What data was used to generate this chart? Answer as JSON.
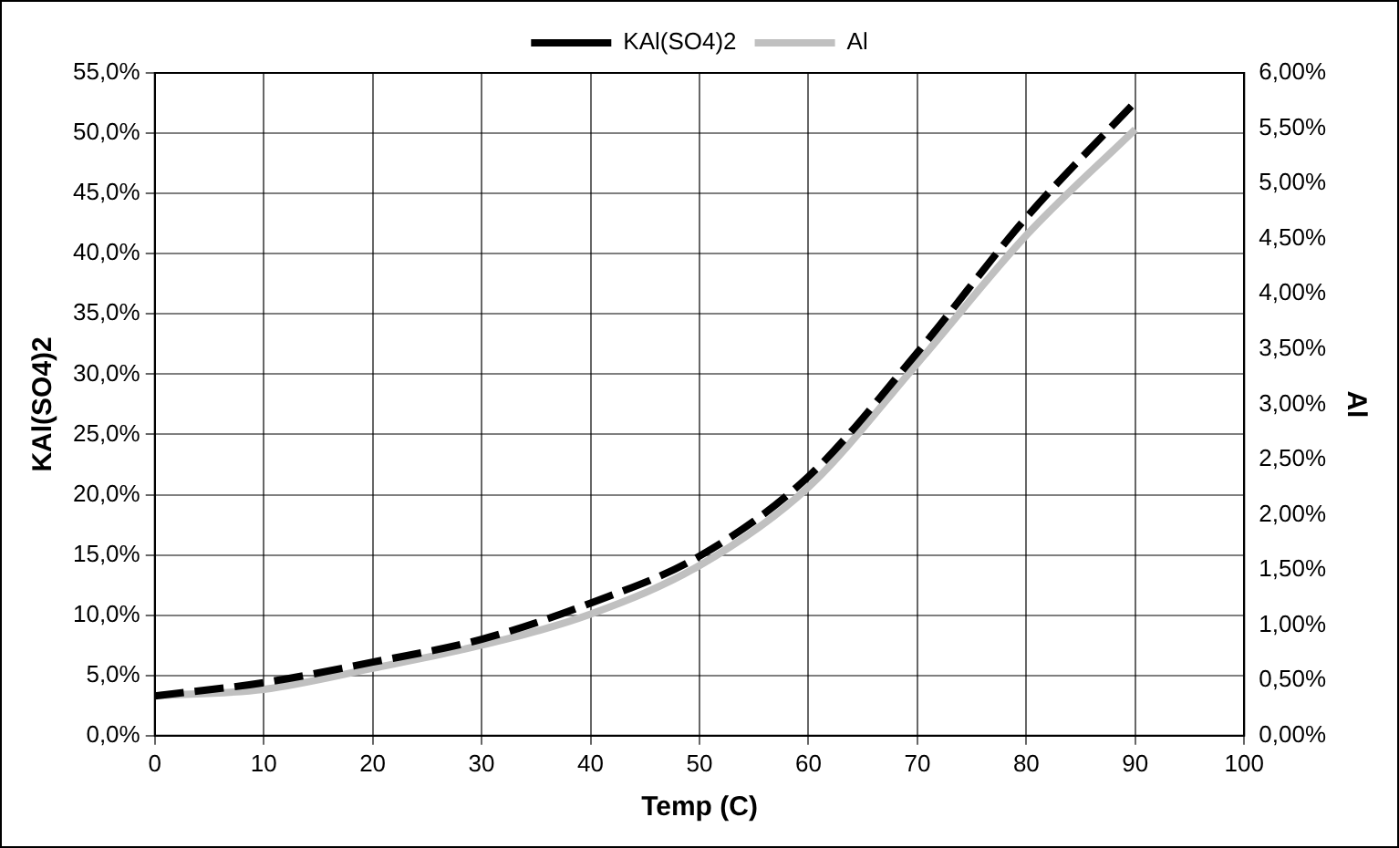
{
  "chart_data": {
    "type": "line",
    "xlabel": "Temp (C)",
    "ylabel": "KAl(SO4)2",
    "y2label": "Al",
    "x": [
      0,
      10,
      20,
      30,
      40,
      50,
      60,
      70,
      80,
      90
    ],
    "series": [
      {
        "name": "KAl(SO4)2",
        "color": "#000000",
        "line_style": "dashed",
        "values": [
          3.3,
          4.4,
          6.1,
          8.0,
          11.0,
          14.9,
          21.5,
          31.8,
          43.0,
          52.6
        ]
      },
      {
        "name": "Al",
        "color": "#c0c0c0",
        "line_style": "solid",
        "axis": "y2",
        "values": [
          0.36,
          0.42,
          0.61,
          0.82,
          1.1,
          1.54,
          2.25,
          3.37,
          4.53,
          5.49
        ]
      }
    ],
    "xlim": [
      0,
      100
    ],
    "xticks": [
      0,
      10,
      20,
      30,
      40,
      50,
      60,
      70,
      80,
      90,
      100
    ],
    "ylim": [
      0,
      55
    ],
    "yticks": [
      {
        "value": 0,
        "label": "0,0%"
      },
      {
        "value": 5,
        "label": "5,0%"
      },
      {
        "value": 10,
        "label": "10,0%"
      },
      {
        "value": 15,
        "label": "15,0%"
      },
      {
        "value": 20,
        "label": "20,0%"
      },
      {
        "value": 25,
        "label": "25,0%"
      },
      {
        "value": 30,
        "label": "30,0%"
      },
      {
        "value": 35,
        "label": "35,0%"
      },
      {
        "value": 40,
        "label": "40,0%"
      },
      {
        "value": 45,
        "label": "45,0%"
      },
      {
        "value": 50,
        "label": "50,0%"
      },
      {
        "value": 55,
        "label": "55,0%"
      }
    ],
    "y2lim": [
      0,
      6
    ],
    "y2ticks": [
      {
        "value": 0,
        "label": "0,00%"
      },
      {
        "value": 0.5,
        "label": "0,50%"
      },
      {
        "value": 1,
        "label": "1,00%"
      },
      {
        "value": 1.5,
        "label": "1,50%"
      },
      {
        "value": 2,
        "label": "2,00%"
      },
      {
        "value": 2.5,
        "label": "2,50%"
      },
      {
        "value": 3,
        "label": "3,00%"
      },
      {
        "value": 3.5,
        "label": "3,50%"
      },
      {
        "value": 4,
        "label": "4,00%"
      },
      {
        "value": 4.5,
        "label": "4,50%"
      },
      {
        "value": 5,
        "label": "5,00%"
      },
      {
        "value": 5.5,
        "label": "5,50%"
      },
      {
        "value": 6,
        "label": "6,00%"
      }
    ],
    "grid": true,
    "legend": "top",
    "marker": "none"
  }
}
